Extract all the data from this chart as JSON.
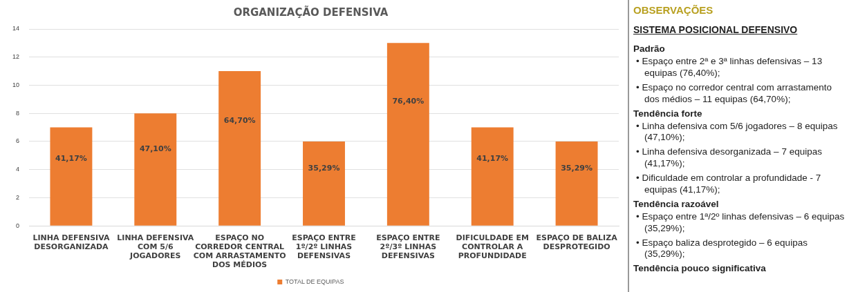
{
  "chart_data": [
    {
      "type": "bar",
      "title": "ORGANIZAÇÃO DEFENSIVA",
      "categories": [
        "LINHA DEFENSIVA DESORGANIZADA",
        "LINHA DEFENSIVA COM 5/6 JOGADORES",
        "ESPAÇO NO CORREDOR CENTRAL COM ARRASTAMENTO DOS MÉDIOS",
        "ESPAÇO ENTRE 1º/2º LINHAS DEFENSIVAS",
        "ESPAÇO ENTRE 2º/3º LINHAS DEFENSIVAS",
        "DIFICULDADE EM CONTROLAR A PROFUNDIDADE",
        "ESPAÇO DE BALIZA DESPROTEGIDO"
      ],
      "series": [
        {
          "name": "TOTAL DE EQUIPAS",
          "color": "#ed7d31",
          "values": [
            7,
            8,
            11,
            6,
            13,
            7,
            6
          ]
        }
      ],
      "annotations": [
        "41,17%",
        "47,10%",
        "64,70%",
        "35,29%",
        "76,40%",
        "41,17%",
        "35,29%"
      ],
      "ylim": [
        0,
        14
      ],
      "yticks": [
        0,
        2,
        4,
        6,
        8,
        10,
        12,
        14
      ],
      "grid": "y",
      "legend": "bottom"
    },
    {
      "type": "other",
      "title": "OBSERVAÇÕES",
      "subtitle": "SISTEMA POSICIONAL DEFENSIVO",
      "annotations": [
        "Padrão",
        "• Espaço entre 2ª e 3ª linhas defensivas – 13 equipas (76,40%);",
        "• Espaço no corredor central com arrastamento dos médios – 11 equipas (64,70%);",
        "Tendência forte",
        "• Linha defensiva com 5/6 jogadores – 8 equipas (47,10%);",
        "• Linha defensiva desorganizada – 7 equipas (41,17%);",
        "• Dificuldade em controlar a profundidade - 7 equipas (41,17%);",
        "Tendência razoável",
        "• Espaço entre 1ª/2º linhas defensivas – 6 equipas (35,29%);",
        "• Espaço baliza desprotegido – 6 equipas (35,29%);",
        "Tendência pouco significativa"
      ]
    }
  ]
}
